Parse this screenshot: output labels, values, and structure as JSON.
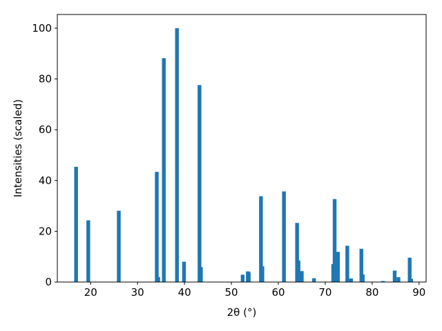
{
  "chart_data": {
    "type": "bar",
    "x_label": "2θ (°)",
    "y_label": "Intensities (scaled)",
    "x": [
      16.9,
      19.5,
      26.0,
      34.1,
      34.4,
      35.6,
      38.4,
      39.9,
      43.2,
      43.5,
      52.4,
      53.5,
      53.7,
      56.3,
      56.6,
      61.2,
      64.0,
      64.3,
      65.0,
      67.6,
      71.7,
      72.0,
      72.7,
      74.7,
      75.5,
      77.7,
      78.0,
      82.3,
      84.8,
      85.6,
      88.0,
      88.3
    ],
    "values": [
      45.4,
      24.3,
      28.1,
      43.4,
      2.0,
      88.2,
      100,
      8.0,
      77.6,
      5.9,
      2.9,
      4.2,
      3.9,
      33.8,
      6.2,
      35.7,
      23.3,
      8.5,
      4.3,
      1.5,
      7.1,
      32.7,
      11.9,
      14.3,
      1.4,
      13.1,
      3.0,
      0.4,
      4.5,
      1.9,
      9.6,
      1.3
    ],
    "bar_width": 0.8,
    "color": "#1f77b4",
    "xlim": [
      12.9,
      91.5
    ],
    "xticks": [
      20,
      30,
      40,
      50,
      60,
      70,
      80,
      90
    ],
    "ylim": [
      0,
      105.4
    ],
    "yticks": [
      0,
      20,
      40,
      60,
      80,
      100
    ]
  }
}
